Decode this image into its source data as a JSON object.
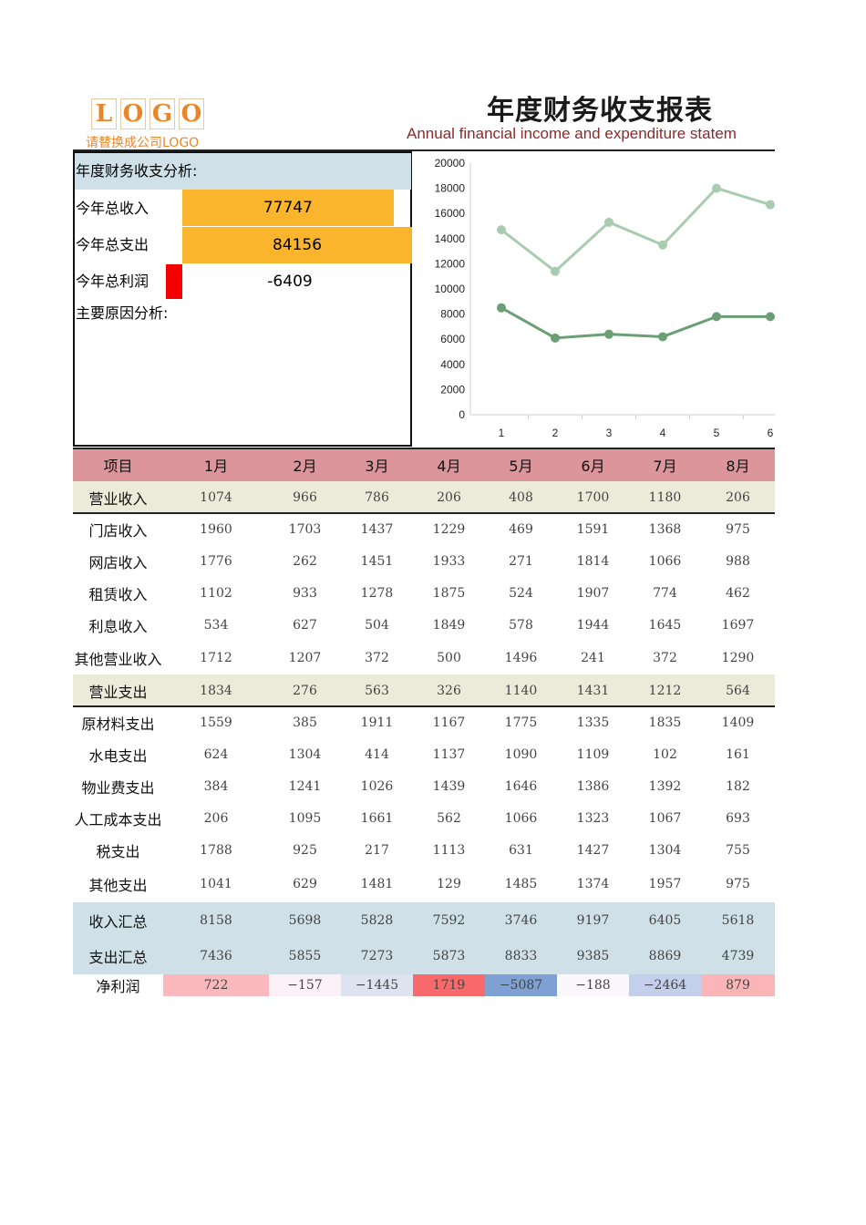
{
  "logo": {
    "letters": [
      "L",
      "O",
      "G",
      "O"
    ],
    "sub": "请替换成公司LOGO"
  },
  "title": "年度财务收支报表",
  "subtitle": "Annual financial income and expenditure statem",
  "summary": {
    "heading": "年度财务收支分析:",
    "income_label": "今年总收入",
    "income_value": "77747",
    "income_fraction": 0.92,
    "expense_label": "今年总支出",
    "expense_value": "84156",
    "expense_fraction": 1.0,
    "profit_label": "今年总利润",
    "profit_value": "-6409",
    "reason_label": "主要原因分析:",
    "colors": {
      "bar": "#fbb52c",
      "negative": "#f40000"
    }
  },
  "chart_data": {
    "type": "line",
    "x": [
      1,
      2,
      3,
      4,
      5,
      6
    ],
    "y_ticks": [
      0,
      2000,
      4000,
      6000,
      8000,
      10000,
      12000,
      14000,
      16000,
      18000,
      20000
    ],
    "ylim": [
      0,
      20000
    ],
    "series": [
      {
        "values": [
          14700,
          11400,
          15300,
          13500,
          18000,
          16700
        ],
        "color": "#a9cbb0"
      },
      {
        "values": [
          8500,
          6100,
          6400,
          6200,
          7800,
          7800
        ],
        "color": "#6b9f73"
      }
    ],
    "grid": false
  },
  "table": {
    "header": [
      "项目",
      "1月",
      "2月",
      "3月",
      "4月",
      "5月",
      "6月",
      "7月",
      "8月"
    ],
    "rows": [
      {
        "name": "营业收入",
        "values": [
          "1074",
          "966",
          "786",
          "206",
          "408",
          "1700",
          "1180",
          "206"
        ],
        "style": "beige"
      },
      {
        "name": "门店收入",
        "values": [
          "1960",
          "1703",
          "1437",
          "1229",
          "469",
          "1591",
          "1368",
          "975"
        ],
        "style": "plain"
      },
      {
        "name": "网店收入",
        "values": [
          "1776",
          "262",
          "1451",
          "1933",
          "271",
          "1814",
          "1066",
          "988"
        ],
        "style": "plain"
      },
      {
        "name": "租赁收入",
        "values": [
          "1102",
          "933",
          "1278",
          "1875",
          "524",
          "1907",
          "774",
          "462"
        ],
        "style": "plain"
      },
      {
        "name": "利息收入",
        "values": [
          "534",
          "627",
          "504",
          "1849",
          "578",
          "1944",
          "1645",
          "1697"
        ],
        "style": "plain"
      },
      {
        "name": "其他营业收入",
        "values": [
          "1712",
          "1207",
          "372",
          "500",
          "1496",
          "241",
          "372",
          "1290"
        ],
        "style": "plain"
      },
      {
        "name": "营业支出",
        "values": [
          "1834",
          "276",
          "563",
          "326",
          "1140",
          "1431",
          "1212",
          "564"
        ],
        "style": "beige"
      },
      {
        "name": "原材料支出",
        "values": [
          "1559",
          "385",
          "1911",
          "1167",
          "1775",
          "1335",
          "1835",
          "1409"
        ],
        "style": "plain"
      },
      {
        "name": "水电支出",
        "values": [
          "624",
          "1304",
          "414",
          "1137",
          "1090",
          "1109",
          "102",
          "161"
        ],
        "style": "plain"
      },
      {
        "name": "物业费支出",
        "values": [
          "384",
          "1241",
          "1026",
          "1439",
          "1646",
          "1386",
          "1392",
          "182"
        ],
        "style": "plain"
      },
      {
        "name": "人工成本支出",
        "values": [
          "206",
          "1095",
          "1661",
          "562",
          "1066",
          "1323",
          "1067",
          "693"
        ],
        "style": "plain"
      },
      {
        "name": "税支出",
        "values": [
          "1788",
          "925",
          "217",
          "1113",
          "631",
          "1427",
          "1304",
          "755"
        ],
        "style": "plain"
      },
      {
        "name": "其他支出",
        "values": [
          "1041",
          "629",
          "1481",
          "129",
          "1485",
          "1374",
          "1957",
          "975"
        ],
        "style": "plain"
      },
      {
        "name": "收入汇总",
        "values": [
          "8158",
          "5698",
          "5828",
          "7592",
          "3746",
          "9197",
          "6405",
          "5618"
        ],
        "style": "blue"
      },
      {
        "name": "支出汇总",
        "values": [
          "7436",
          "5855",
          "7273",
          "5873",
          "8833",
          "9385",
          "8869",
          "4739"
        ],
        "style": "blue"
      },
      {
        "name": "净利润",
        "values": [
          "722",
          "−157",
          "−1445",
          "1719",
          "−5087",
          "−188",
          "−2464",
          "879"
        ],
        "style": "profit",
        "colors": [
          "#fbb9bd",
          "#fcf1f7",
          "#dde3f0",
          "#f7696b",
          "#7ea0d2",
          "#fcf7fb",
          "#c3cfeb",
          "#fbb4b8"
        ]
      }
    ]
  }
}
